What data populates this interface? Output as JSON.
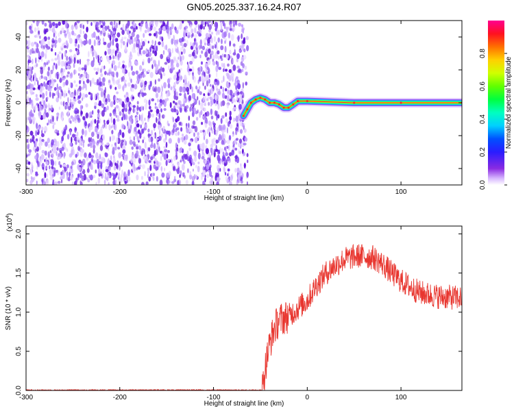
{
  "title": "GN05.2025.337.16.24.R07",
  "colors": {
    "snr_line": "#e8362f",
    "noise_purple": "#7a3cf0",
    "colorbar": [
      "#ffffff",
      "#d8b8ff",
      "#8a2be2",
      "#3a1cff",
      "#0000ff",
      "#00bfff",
      "#00ffff",
      "#00ff80",
      "#00ff00",
      "#a0ff00",
      "#ffff00",
      "#ffa000",
      "#ff3000",
      "#ff0040",
      "#ff00a0"
    ]
  },
  "chart_data": [
    {
      "type": "heatmap",
      "xlabel": "Height of straight line (km)",
      "ylabel": "Frequency (Hz)",
      "xlim": [
        -300,
        165
      ],
      "ylim": [
        -50,
        50
      ],
      "xticks": [
        -300,
        -200,
        -100,
        0,
        100
      ],
      "yticks": [
        -40,
        -20,
        0,
        20,
        40
      ],
      "colorbar": {
        "label": "Normalized spectral amplitude",
        "range": [
          0,
          1
        ],
        "ticks": [
          "0.0",
          "0.2",
          "0.4",
          "0.6",
          "0.8"
        ],
        "scale": "rainbow"
      },
      "noise_region": {
        "x_start": -300,
        "x_end": -68,
        "freq_range": [
          -50,
          50
        ]
      },
      "signal_ridge": [
        {
          "x": -68,
          "y": -8
        },
        {
          "x": -64,
          "y": -4
        },
        {
          "x": -60,
          "y": 0
        },
        {
          "x": -55,
          "y": 2
        },
        {
          "x": -50,
          "y": 3
        },
        {
          "x": -45,
          "y": 2
        },
        {
          "x": -40,
          "y": 0
        },
        {
          "x": -35,
          "y": 0
        },
        {
          "x": -30,
          "y": -1
        },
        {
          "x": -25,
          "y": -3
        },
        {
          "x": -20,
          "y": -3
        },
        {
          "x": -15,
          "y": -1
        },
        {
          "x": -10,
          "y": 1
        },
        {
          "x": 0,
          "y": 1
        },
        {
          "x": 50,
          "y": 0
        },
        {
          "x": 100,
          "y": 0
        },
        {
          "x": 165,
          "y": 0
        }
      ]
    },
    {
      "type": "line",
      "xlabel": "Height of straight line (km)",
      "ylabel": "SNR (10 * v/v)",
      "multiplier_label": "(x10",
      "multiplier_exponent": "4",
      "xlim": [
        -300,
        165
      ],
      "ylim": [
        0,
        2.1
      ],
      "xticks": [
        -300,
        -200,
        -100,
        0,
        100
      ],
      "yticks": [
        "0.0",
        "0.5",
        "1.0",
        "1.5",
        "2.0"
      ],
      "series": [
        {
          "color": "#e8362f",
          "envelope": [
            {
              "x": -300,
              "y": 0.0
            },
            {
              "x": -100,
              "y": 0.0
            },
            {
              "x": -48,
              "y": 0.02
            },
            {
              "x": -44,
              "y": 0.35
            },
            {
              "x": -40,
              "y": 0.6
            },
            {
              "x": -35,
              "y": 0.8
            },
            {
              "x": -30,
              "y": 0.9
            },
            {
              "x": -20,
              "y": 0.95
            },
            {
              "x": -10,
              "y": 1.05
            },
            {
              "x": 0,
              "y": 1.15
            },
            {
              "x": 10,
              "y": 1.35
            },
            {
              "x": 20,
              "y": 1.5
            },
            {
              "x": 30,
              "y": 1.6
            },
            {
              "x": 40,
              "y": 1.68
            },
            {
              "x": 55,
              "y": 1.72
            },
            {
              "x": 70,
              "y": 1.7
            },
            {
              "x": 80,
              "y": 1.62
            },
            {
              "x": 90,
              "y": 1.5
            },
            {
              "x": 100,
              "y": 1.4
            },
            {
              "x": 110,
              "y": 1.32
            },
            {
              "x": 120,
              "y": 1.25
            },
            {
              "x": 140,
              "y": 1.2
            },
            {
              "x": 165,
              "y": 1.18
            }
          ]
        }
      ]
    }
  ]
}
